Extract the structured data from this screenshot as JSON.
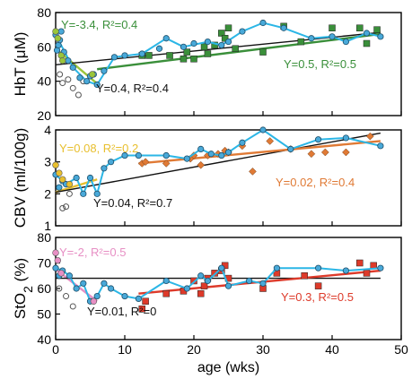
{
  "colors": {
    "hbt_green": "#3a8f3a",
    "hbt_light": "#9ac53a",
    "cbv_gold": "#e8bf2e",
    "cbv_orange": "#e07a35",
    "sto2_pink": "#e78fc4",
    "sto2_red": "#dd3a2a",
    "curve_cyan": "#2bb6e6",
    "circle_fill": "#49a9d9",
    "overall_line": "#111111"
  },
  "chart_data": [
    {
      "type": "scatter",
      "panel": "hbt",
      "ylabel": "HbT (μM)",
      "ylim": [
        20,
        80
      ],
      "yticks": [
        20,
        40,
        60,
        80
      ],
      "xlim": [
        0,
        50
      ],
      "circles_color": [
        {
          "x": 0.0,
          "y": 67
        },
        {
          "x": 0.2,
          "y": 58
        },
        {
          "x": 0.4,
          "y": 61
        },
        {
          "x": 0.6,
          "y": 64
        },
        {
          "x": 0.8,
          "y": 69
        },
        {
          "x": 1.2,
          "y": 57
        },
        {
          "x": 1.8,
          "y": 52
        },
        {
          "x": 2.5,
          "y": 48
        },
        {
          "x": 3.5,
          "y": 42
        },
        {
          "x": 4.5,
          "y": 40
        },
        {
          "x": 5.0,
          "y": 43
        },
        {
          "x": 5.5,
          "y": 44
        },
        {
          "x": 6.0,
          "y": 38
        },
        {
          "x": 7.0,
          "y": 46
        },
        {
          "x": 8.5,
          "y": 54
        },
        {
          "x": 10.0,
          "y": 55
        },
        {
          "x": 12.5,
          "y": 56
        },
        {
          "x": 15.0,
          "y": 59
        },
        {
          "x": 16.0,
          "y": 65
        },
        {
          "x": 18.5,
          "y": 60
        },
        {
          "x": 20.0,
          "y": 62
        },
        {
          "x": 22.0,
          "y": 63
        },
        {
          "x": 24.0,
          "y": 61
        },
        {
          "x": 25.0,
          "y": 63
        },
        {
          "x": 27.0,
          "y": 69
        },
        {
          "x": 30.0,
          "y": 74
        },
        {
          "x": 33.0,
          "y": 71
        },
        {
          "x": 37.0,
          "y": 65
        },
        {
          "x": 40.0,
          "y": 66
        },
        {
          "x": 42.0,
          "y": 63
        },
        {
          "x": 45.0,
          "y": 68
        },
        {
          "x": 47.0,
          "y": 66
        }
      ],
      "circles_open": [
        {
          "x": 0.6,
          "y": 44
        },
        {
          "x": 1.0,
          "y": 39
        },
        {
          "x": 1.8,
          "y": 41
        },
        {
          "x": 2.5,
          "y": 36
        },
        {
          "x": 3.3,
          "y": 32
        },
        {
          "x": 4.0,
          "y": 40
        }
      ],
      "circles_light": [
        {
          "x": 0.0,
          "y": 69
        },
        {
          "x": 0.3,
          "y": 65
        },
        {
          "x": 0.8,
          "y": 55
        },
        {
          "x": 1.0,
          "y": 52
        },
        {
          "x": 5.3,
          "y": 44
        }
      ],
      "squares": [
        {
          "x": 12.5,
          "y": 55
        },
        {
          "x": 13.5,
          "y": 55
        },
        {
          "x": 16.5,
          "y": 55
        },
        {
          "x": 18.5,
          "y": 53
        },
        {
          "x": 19.0,
          "y": 57
        },
        {
          "x": 20.0,
          "y": 53
        },
        {
          "x": 21.5,
          "y": 60
        },
        {
          "x": 22.0,
          "y": 56
        },
        {
          "x": 23.0,
          "y": 61
        },
        {
          "x": 24.0,
          "y": 68
        },
        {
          "x": 24.5,
          "y": 65
        },
        {
          "x": 25.0,
          "y": 71
        },
        {
          "x": 26.0,
          "y": 59
        },
        {
          "x": 30.0,
          "y": 57
        },
        {
          "x": 33.0,
          "y": 72
        },
        {
          "x": 35.5,
          "y": 63
        },
        {
          "x": 40.0,
          "y": 71
        },
        {
          "x": 44.0,
          "y": 71
        },
        {
          "x": 45.0,
          "y": 62
        },
        {
          "x": 46.5,
          "y": 70
        }
      ],
      "curve": [
        [
          0.0,
          67
        ],
        [
          2.5,
          48
        ],
        [
          4.5,
          40
        ],
        [
          6.0,
          38
        ],
        [
          8.5,
          54
        ],
        [
          12.5,
          56
        ],
        [
          16.0,
          65
        ],
        [
          18.5,
          60
        ],
        [
          22.0,
          63
        ],
        [
          24.0,
          61
        ],
        [
          27.0,
          69
        ],
        [
          30.0,
          74
        ],
        [
          33.0,
          71
        ],
        [
          37.0,
          65
        ],
        [
          40.0,
          66
        ],
        [
          42.0,
          63
        ],
        [
          45.0,
          68
        ],
        [
          47.0,
          66
        ]
      ],
      "fits": [
        {
          "x": [
            0,
            6
          ],
          "y": [
            59,
            38.6
          ],
          "role": "early"
        },
        {
          "x": [
            0,
            47
          ],
          "y": [
            49.6,
            68.4
          ],
          "role": "overall"
        },
        {
          "x": [
            6,
            47
          ],
          "y": [
            47.0,
            67.5
          ],
          "role": "late"
        }
      ],
      "annotations": [
        {
          "text": "Y=-3.4, R²=0.4",
          "role": "early"
        },
        {
          "text": "Y=0.4, R²=0.4",
          "role": "overall"
        },
        {
          "text": "Y=0.5, R²=0.5",
          "role": "late"
        }
      ]
    },
    {
      "type": "scatter",
      "panel": "cbv",
      "ylabel": "CBV (ml/100g)",
      "ylim": [
        1,
        4
      ],
      "yticks": [
        1,
        2,
        3,
        4
      ],
      "xlim": [
        0,
        50
      ],
      "circles_color": [
        {
          "x": 0.0,
          "y": 2.6
        },
        {
          "x": 0.5,
          "y": 2.2
        },
        {
          "x": 1.0,
          "y": 2.4
        },
        {
          "x": 1.5,
          "y": 2.3
        },
        {
          "x": 3.0,
          "y": 2.5
        },
        {
          "x": 4.0,
          "y": 2.0
        },
        {
          "x": 5.0,
          "y": 2.5
        },
        {
          "x": 6.0,
          "y": 2.0
        },
        {
          "x": 7.0,
          "y": 2.8
        },
        {
          "x": 8.0,
          "y": 3.0
        },
        {
          "x": 10.0,
          "y": 3.2
        },
        {
          "x": 12.0,
          "y": 3.2
        },
        {
          "x": 16.0,
          "y": 3.2
        },
        {
          "x": 19.0,
          "y": 3.1
        },
        {
          "x": 21.0,
          "y": 3.4
        },
        {
          "x": 22.5,
          "y": 3.25
        },
        {
          "x": 24.0,
          "y": 3.2
        },
        {
          "x": 25.0,
          "y": 3.3
        },
        {
          "x": 27.0,
          "y": 3.6
        },
        {
          "x": 30.0,
          "y": 4.0
        },
        {
          "x": 34.0,
          "y": 3.4
        },
        {
          "x": 38.0,
          "y": 3.7
        },
        {
          "x": 42.0,
          "y": 3.75
        },
        {
          "x": 47.0,
          "y": 3.5
        }
      ],
      "circles_open": [
        {
          "x": 1.0,
          "y": 1.55
        },
        {
          "x": 1.5,
          "y": 1.6
        },
        {
          "x": 2.0,
          "y": 2.0
        }
      ],
      "circles_light": [
        {
          "x": 0.0,
          "y": 2.9
        },
        {
          "x": 0.5,
          "y": 2.65
        },
        {
          "x": 1.0,
          "y": 2.45
        },
        {
          "x": 2.0,
          "y": 2.3
        }
      ],
      "squares": [
        {
          "x": 12.5,
          "y": 2.95
        },
        {
          "x": 13.0,
          "y": 3.0
        },
        {
          "x": 16.0,
          "y": 2.95
        },
        {
          "x": 19.5,
          "y": 3.1
        },
        {
          "x": 20.0,
          "y": 3.2
        },
        {
          "x": 21.0,
          "y": 2.9
        },
        {
          "x": 22.0,
          "y": 3.2
        },
        {
          "x": 23.5,
          "y": 3.25
        },
        {
          "x": 24.5,
          "y": 3.35
        },
        {
          "x": 25.0,
          "y": 3.3
        },
        {
          "x": 27.0,
          "y": 3.5
        },
        {
          "x": 28.5,
          "y": 2.7
        },
        {
          "x": 31.0,
          "y": 3.65
        },
        {
          "x": 34.0,
          "y": 3.4
        },
        {
          "x": 37.0,
          "y": 3.25
        },
        {
          "x": 39.0,
          "y": 3.3
        },
        {
          "x": 42.0,
          "y": 3.3
        },
        {
          "x": 45.5,
          "y": 3.8
        }
      ],
      "curve": [
        [
          0.0,
          2.6
        ],
        [
          1.5,
          2.3
        ],
        [
          3.0,
          2.5
        ],
        [
          4.0,
          2.0
        ],
        [
          5.0,
          2.5
        ],
        [
          6.0,
          2.0
        ],
        [
          7.0,
          2.8
        ],
        [
          8.0,
          3.0
        ],
        [
          10.0,
          3.2
        ],
        [
          12.0,
          3.2
        ],
        [
          16.0,
          3.2
        ],
        [
          19.0,
          3.1
        ],
        [
          21.0,
          3.4
        ],
        [
          22.5,
          3.25
        ],
        [
          24.0,
          3.2
        ],
        [
          25.0,
          3.3
        ],
        [
          27.0,
          3.6
        ],
        [
          30.0,
          4.0
        ],
        [
          34.0,
          3.4
        ],
        [
          38.0,
          3.7
        ],
        [
          42.0,
          3.75
        ],
        [
          47.0,
          3.5
        ]
      ],
      "fits": [
        {
          "x": [
            0,
            6
          ],
          "y": [
            2.05,
            2.45
          ],
          "role": "early"
        },
        {
          "x": [
            0,
            47
          ],
          "y": [
            2.05,
            3.9
          ],
          "role": "overall"
        },
        {
          "x": [
            12,
            47
          ],
          "y": [
            2.95,
            3.65
          ],
          "role": "late"
        }
      ],
      "annotations": [
        {
          "text": "Y=0.08, R²=0.2",
          "role": "early"
        },
        {
          "text": "Y=0.04, R²=0.7",
          "role": "overall"
        },
        {
          "text": "Y=0.02, R²=0.4",
          "role": "late"
        }
      ]
    },
    {
      "type": "scatter",
      "panel": "sto2",
      "ylabel": "StO2 (%)",
      "ylim": [
        40,
        80
      ],
      "yticks": [
        40,
        50,
        60,
        70,
        80
      ],
      "xlim": [
        0,
        50
      ],
      "xticks": [
        0,
        10,
        20,
        30,
        40,
        50
      ],
      "xlabel": "age (wks)",
      "circles_color": [
        {
          "x": 0.0,
          "y": 68
        },
        {
          "x": 0.5,
          "y": 65
        },
        {
          "x": 1.0,
          "y": 67
        },
        {
          "x": 2.0,
          "y": 65
        },
        {
          "x": 3.0,
          "y": 60
        },
        {
          "x": 4.0,
          "y": 62
        },
        {
          "x": 5.0,
          "y": 55
        },
        {
          "x": 6.0,
          "y": 57
        },
        {
          "x": 7.0,
          "y": 62
        },
        {
          "x": 8.0,
          "y": 60
        },
        {
          "x": 10.0,
          "y": 57
        },
        {
          "x": 12.0,
          "y": 56
        },
        {
          "x": 16.0,
          "y": 63
        },
        {
          "x": 19.0,
          "y": 60
        },
        {
          "x": 21.0,
          "y": 65
        },
        {
          "x": 22.0,
          "y": 63
        },
        {
          "x": 24.0,
          "y": 68
        },
        {
          "x": 25.0,
          "y": 61
        },
        {
          "x": 28.0,
          "y": 63
        },
        {
          "x": 30.0,
          "y": 62
        },
        {
          "x": 32.0,
          "y": 68
        },
        {
          "x": 38.0,
          "y": 68
        },
        {
          "x": 42.0,
          "y": 67
        },
        {
          "x": 47.0,
          "y": 68
        }
      ],
      "circles_open": [
        {
          "x": 0.5,
          "y": 60
        },
        {
          "x": 1.5,
          "y": 57
        },
        {
          "x": 2.5,
          "y": 53
        },
        {
          "x": 5.0,
          "y": 55
        }
      ],
      "circles_light": [
        {
          "x": 0.0,
          "y": 74
        },
        {
          "x": 0.3,
          "y": 71
        },
        {
          "x": 0.8,
          "y": 66
        },
        {
          "x": 5.5,
          "y": 55
        }
      ],
      "squares": [
        {
          "x": 12.5,
          "y": 52
        },
        {
          "x": 13.0,
          "y": 55
        },
        {
          "x": 16.0,
          "y": 58
        },
        {
          "x": 18.5,
          "y": 59
        },
        {
          "x": 20.0,
          "y": 63
        },
        {
          "x": 21.0,
          "y": 58
        },
        {
          "x": 21.5,
          "y": 61
        },
        {
          "x": 22.0,
          "y": 64
        },
        {
          "x": 23.0,
          "y": 66
        },
        {
          "x": 24.0,
          "y": 67
        },
        {
          "x": 24.5,
          "y": 69
        },
        {
          "x": 25.0,
          "y": 64
        },
        {
          "x": 30.0,
          "y": 60
        },
        {
          "x": 32.0,
          "y": 66
        },
        {
          "x": 36.0,
          "y": 65
        },
        {
          "x": 38.0,
          "y": 61
        },
        {
          "x": 44.0,
          "y": 70
        },
        {
          "x": 45.0,
          "y": 66
        },
        {
          "x": 46.0,
          "y": 69
        }
      ],
      "curve": [
        [
          0.0,
          68
        ],
        [
          1.0,
          67
        ],
        [
          2.0,
          65
        ],
        [
          3.0,
          60
        ],
        [
          4.0,
          62
        ],
        [
          5.0,
          55
        ],
        [
          6.0,
          57
        ],
        [
          7.0,
          62
        ],
        [
          8.0,
          60
        ],
        [
          10.0,
          57
        ],
        [
          12.0,
          56
        ],
        [
          16.0,
          63
        ],
        [
          19.0,
          60
        ],
        [
          21.0,
          65
        ],
        [
          22.0,
          63
        ],
        [
          24.0,
          68
        ],
        [
          25.0,
          61
        ],
        [
          28.0,
          63
        ],
        [
          30.0,
          62
        ],
        [
          32.0,
          68
        ],
        [
          38.0,
          68
        ],
        [
          42.0,
          67
        ],
        [
          47.0,
          68
        ]
      ],
      "fits": [
        {
          "x": [
            0,
            6
          ],
          "y": [
            67.5,
            55.0
          ],
          "role": "early"
        },
        {
          "x": [
            0,
            47
          ],
          "y": [
            64.0,
            64.0
          ],
          "role": "overall"
        },
        {
          "x": [
            12,
            47
          ],
          "y": [
            58.0,
            67.0
          ],
          "role": "late"
        }
      ],
      "annotations": [
        {
          "text": "Y=-2, R²=0.5",
          "role": "early"
        },
        {
          "text": "Y=0.01, R²=0",
          "role": "overall"
        },
        {
          "text": "Y=0.3, R²=0.5",
          "role": "late"
        }
      ]
    }
  ]
}
